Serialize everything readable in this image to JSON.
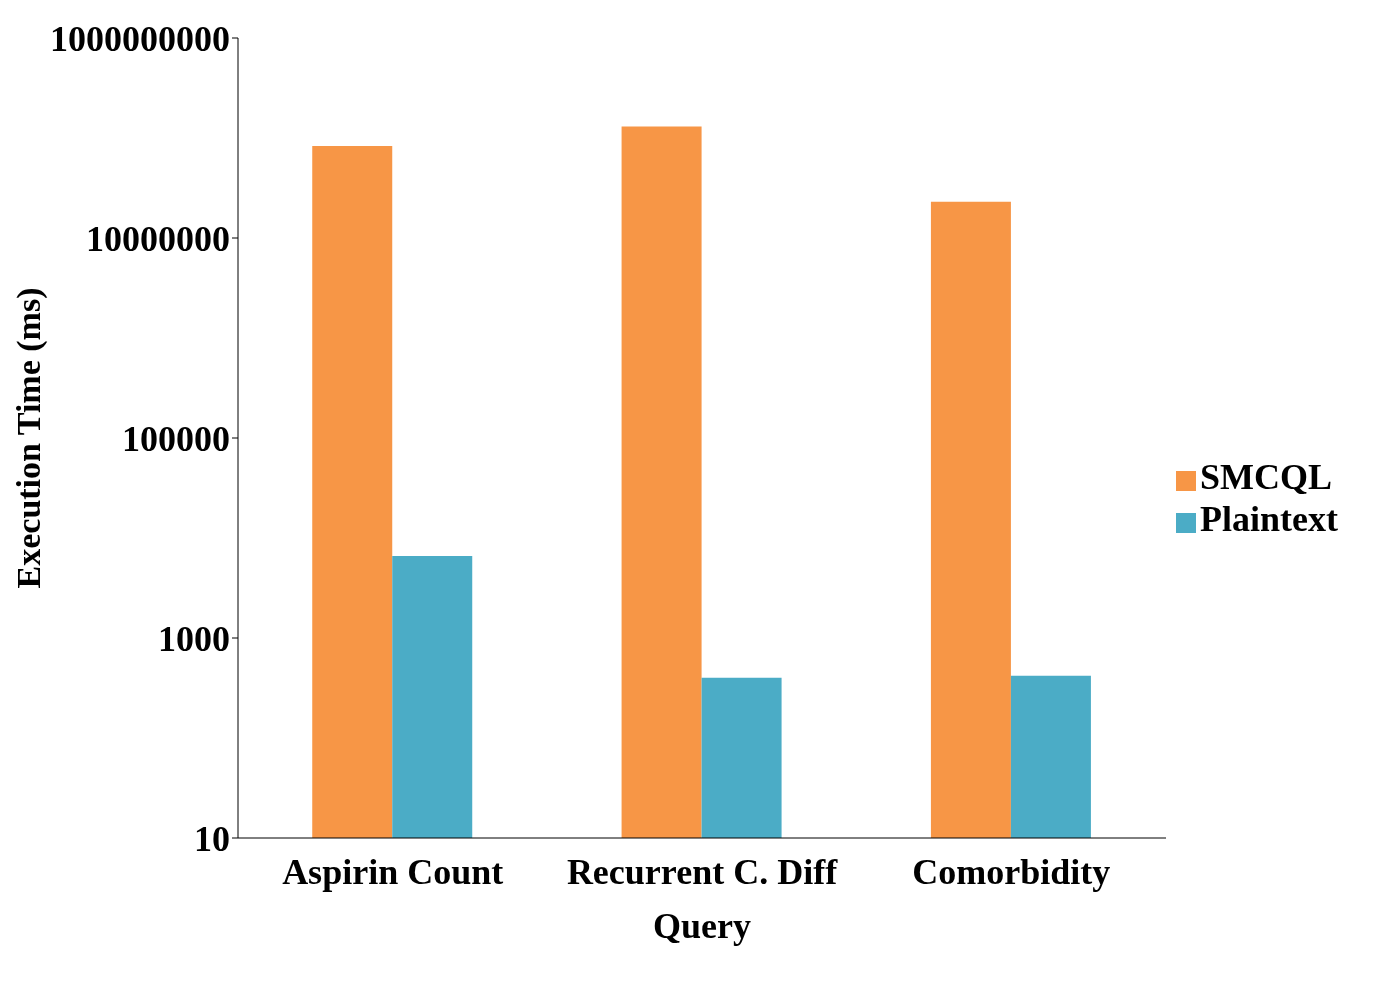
{
  "chart_data": {
    "type": "bar",
    "xlabel": "Query",
    "ylabel": "Execution Time (ms)",
    "categories": [
      "Aspirin Count",
      "Recurrent C. Diff",
      "Comorbidity"
    ],
    "series": [
      {
        "name": "SMCQL",
        "color": "#f79646",
        "values": [
          83000000,
          130000000,
          23000000
        ]
      },
      {
        "name": "Plaintext",
        "color": "#4bacc6",
        "values": [
          6600,
          400,
          420
        ]
      }
    ],
    "log": true,
    "ylim": [
      10,
      1000000000
    ],
    "yticks": [
      10,
      1000,
      100000,
      10000000,
      1000000000
    ],
    "grid": false,
    "legend": "right"
  }
}
